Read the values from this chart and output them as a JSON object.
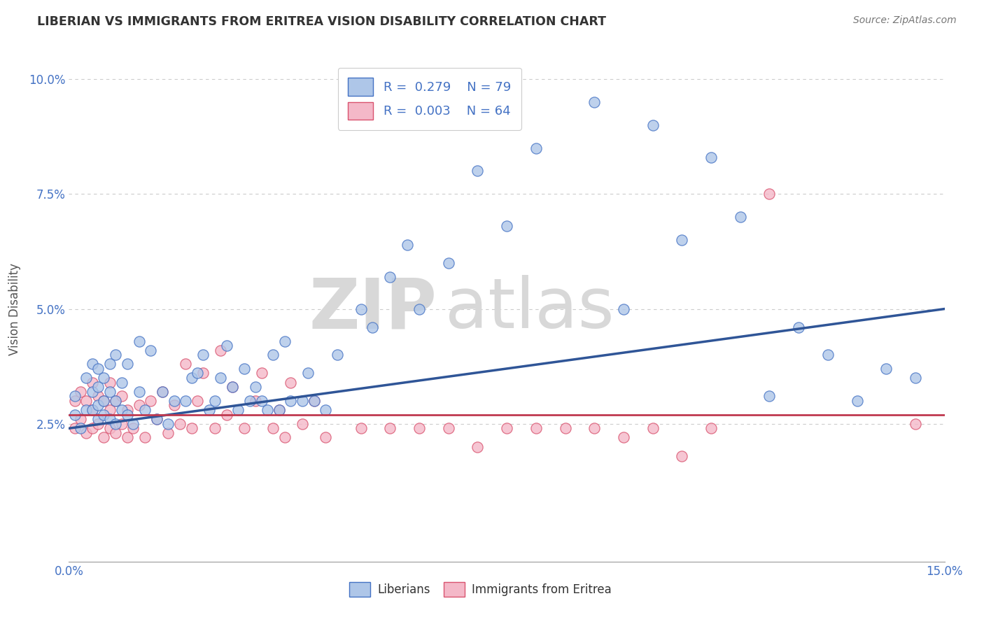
{
  "title": "LIBERIAN VS IMMIGRANTS FROM ERITREA VISION DISABILITY CORRELATION CHART",
  "source": "Source: ZipAtlas.com",
  "ylabel": "Vision Disability",
  "xlim": [
    0.0,
    0.15
  ],
  "ylim": [
    -0.005,
    0.105
  ],
  "liberian_color": "#aec6e8",
  "liberian_edge_color": "#4472c4",
  "eritrea_color": "#f4b8c8",
  "eritrea_edge_color": "#d9536f",
  "liberian_line_color": "#2f5597",
  "eritrea_line_color": "#c0394f",
  "watermark_zip": "ZIP",
  "watermark_atlas": "atlas",
  "legend_r1": "R =  0.279",
  "legend_n1": "N = 79",
  "legend_r2": "R =  0.003",
  "legend_n2": "N = 64",
  "liberian_x": [
    0.001,
    0.001,
    0.002,
    0.003,
    0.003,
    0.004,
    0.004,
    0.004,
    0.005,
    0.005,
    0.005,
    0.005,
    0.006,
    0.006,
    0.006,
    0.007,
    0.007,
    0.007,
    0.008,
    0.008,
    0.008,
    0.009,
    0.009,
    0.01,
    0.01,
    0.011,
    0.012,
    0.012,
    0.013,
    0.014,
    0.015,
    0.016,
    0.017,
    0.018,
    0.02,
    0.021,
    0.022,
    0.023,
    0.024,
    0.025,
    0.026,
    0.027,
    0.028,
    0.029,
    0.03,
    0.031,
    0.032,
    0.033,
    0.034,
    0.035,
    0.036,
    0.037,
    0.038,
    0.04,
    0.041,
    0.042,
    0.044,
    0.046,
    0.05,
    0.052,
    0.055,
    0.058,
    0.06,
    0.065,
    0.07,
    0.075,
    0.08,
    0.09,
    0.095,
    0.1,
    0.105,
    0.11,
    0.115,
    0.12,
    0.125,
    0.13,
    0.135,
    0.14,
    0.145
  ],
  "liberian_y": [
    0.027,
    0.031,
    0.024,
    0.028,
    0.035,
    0.028,
    0.032,
    0.038,
    0.026,
    0.029,
    0.033,
    0.037,
    0.027,
    0.03,
    0.035,
    0.026,
    0.032,
    0.038,
    0.025,
    0.03,
    0.04,
    0.028,
    0.034,
    0.027,
    0.038,
    0.025,
    0.032,
    0.043,
    0.028,
    0.041,
    0.026,
    0.032,
    0.025,
    0.03,
    0.03,
    0.035,
    0.036,
    0.04,
    0.028,
    0.03,
    0.035,
    0.042,
    0.033,
    0.028,
    0.037,
    0.03,
    0.033,
    0.03,
    0.028,
    0.04,
    0.028,
    0.043,
    0.03,
    0.03,
    0.036,
    0.03,
    0.028,
    0.04,
    0.05,
    0.046,
    0.057,
    0.064,
    0.05,
    0.06,
    0.08,
    0.068,
    0.085,
    0.095,
    0.05,
    0.09,
    0.065,
    0.083,
    0.07,
    0.031,
    0.046,
    0.04,
    0.03,
    0.037,
    0.035
  ],
  "eritrea_x": [
    0.001,
    0.001,
    0.002,
    0.002,
    0.003,
    0.003,
    0.004,
    0.004,
    0.004,
    0.005,
    0.005,
    0.006,
    0.006,
    0.007,
    0.007,
    0.007,
    0.008,
    0.008,
    0.009,
    0.009,
    0.01,
    0.01,
    0.011,
    0.012,
    0.013,
    0.014,
    0.015,
    0.016,
    0.017,
    0.018,
    0.019,
    0.02,
    0.021,
    0.022,
    0.023,
    0.025,
    0.026,
    0.027,
    0.028,
    0.03,
    0.032,
    0.033,
    0.035,
    0.036,
    0.037,
    0.038,
    0.04,
    0.042,
    0.044,
    0.05,
    0.055,
    0.06,
    0.065,
    0.07,
    0.075,
    0.08,
    0.085,
    0.09,
    0.095,
    0.1,
    0.105,
    0.11,
    0.12,
    0.145
  ],
  "eritrea_y": [
    0.024,
    0.03,
    0.026,
    0.032,
    0.023,
    0.03,
    0.024,
    0.028,
    0.034,
    0.025,
    0.031,
    0.022,
    0.03,
    0.024,
    0.028,
    0.034,
    0.023,
    0.03,
    0.025,
    0.031,
    0.022,
    0.028,
    0.024,
    0.029,
    0.022,
    0.03,
    0.026,
    0.032,
    0.023,
    0.029,
    0.025,
    0.038,
    0.024,
    0.03,
    0.036,
    0.024,
    0.041,
    0.027,
    0.033,
    0.024,
    0.03,
    0.036,
    0.024,
    0.028,
    0.022,
    0.034,
    0.025,
    0.03,
    0.022,
    0.024,
    0.024,
    0.024,
    0.024,
    0.02,
    0.024,
    0.024,
    0.024,
    0.024,
    0.022,
    0.024,
    0.018,
    0.024,
    0.075,
    0.025
  ]
}
